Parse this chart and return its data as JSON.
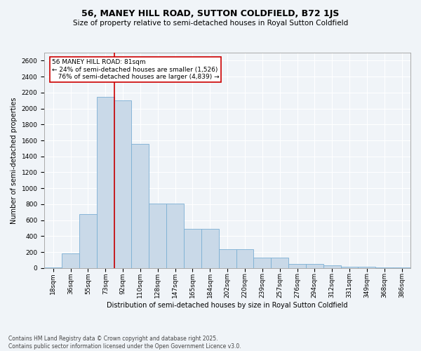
{
  "title": "56, MANEY HILL ROAD, SUTTON COLDFIELD, B72 1JS",
  "subtitle": "Size of property relative to semi-detached houses in Royal Sutton Coldfield",
  "xlabel": "Distribution of semi-detached houses by size in Royal Sutton Coldfield",
  "ylabel": "Number of semi-detached properties",
  "footer": "Contains HM Land Registry data © Crown copyright and database right 2025.\nContains public sector information licensed under the Open Government Licence v3.0.",
  "property_size": 81,
  "property_label": "56 MANEY HILL ROAD: 81sqm",
  "pct_smaller": 24,
  "pct_larger": 76,
  "n_smaller": 1526,
  "n_larger": 4839,
  "bar_color": "#c9d9e8",
  "bar_edge_color": "#7bafd4",
  "highlight_line_color": "#cc0000",
  "annotation_box_color": "#cc0000",
  "background_color": "#f0f4f8",
  "categories": [
    "18sqm",
    "36sqm",
    "55sqm",
    "73sqm",
    "92sqm",
    "110sqm",
    "128sqm",
    "147sqm",
    "165sqm",
    "184sqm",
    "202sqm",
    "220sqm",
    "239sqm",
    "257sqm",
    "276sqm",
    "294sqm",
    "312sqm",
    "331sqm",
    "349sqm",
    "368sqm",
    "386sqm"
  ],
  "bin_edges": [
    9,
    27,
    45,
    63,
    81,
    99,
    117,
    135,
    153,
    171,
    189,
    207,
    225,
    243,
    261,
    279,
    297,
    315,
    333,
    351,
    369,
    387
  ],
  "values": [
    10,
    180,
    680,
    2150,
    2100,
    1560,
    810,
    810,
    490,
    490,
    240,
    240,
    130,
    130,
    55,
    55,
    30,
    20,
    15,
    10,
    10
  ],
  "ylim": [
    0,
    2700
  ],
  "yticks": [
    0,
    200,
    400,
    600,
    800,
    1000,
    1200,
    1400,
    1600,
    1800,
    2000,
    2200,
    2400,
    2600
  ],
  "grid_color": "#ffffff",
  "title_fontsize": 9,
  "subtitle_fontsize": 7.5,
  "axis_label_fontsize": 7,
  "tick_fontsize": 6.5,
  "footer_fontsize": 5.5,
  "annotation_fontsize": 6.5
}
